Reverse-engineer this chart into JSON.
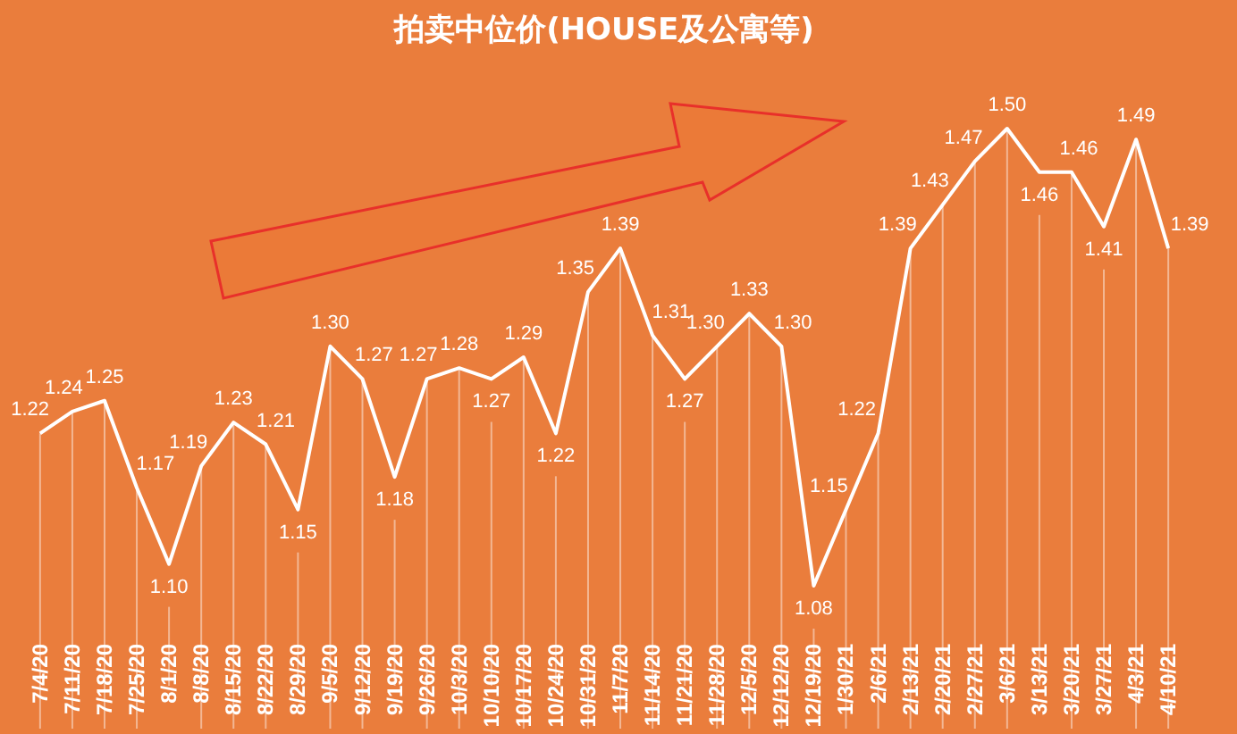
{
  "chart_data": {
    "type": "line",
    "title": "拍卖中位价(HOUSE及公寓等)",
    "categories": [
      "7/4/20",
      "7/11/20",
      "7/18/20",
      "7/25/20",
      "8/1/20",
      "8/8/20",
      "8/15/20",
      "8/22/20",
      "8/29/20",
      "9/5/20",
      "9/12/20",
      "9/19/20",
      "9/26/20",
      "10/3/20",
      "10/10/20",
      "10/17/20",
      "10/24/20",
      "10/31/20",
      "11/7/20",
      "11/14/20",
      "11/21/20",
      "11/28/20",
      "12/5/20",
      "12/12/20",
      "12/19/20",
      "1/30/21",
      "2/6/21",
      "2/13/21",
      "2/20/21",
      "2/27/21",
      "3/6/21",
      "3/13/21",
      "3/20/21",
      "3/27/21",
      "4/3/21",
      "4/10/21"
    ],
    "series": [
      {
        "color": "#ffffff",
        "values": [
          1.22,
          1.24,
          1.25,
          1.17,
          1.1,
          1.19,
          1.23,
          1.21,
          1.15,
          1.3,
          1.27,
          1.18,
          1.27,
          1.28,
          1.27,
          1.29,
          1.22,
          1.35,
          1.39,
          1.31,
          1.27,
          1.3,
          1.33,
          1.3,
          1.08,
          1.15,
          1.22,
          1.39,
          1.43,
          1.47,
          1.5,
          1.46,
          1.46,
          1.41,
          1.49,
          1.39
        ],
        "value_labels": [
          "1.22",
          "1.24",
          "1.25",
          "1.17",
          "1.10",
          "1.19",
          "1.23",
          "1.21",
          "1.15",
          "1.30",
          "1.27",
          "1.18",
          "1.27",
          "1.28",
          "1.27",
          "1.29",
          "1.22",
          "1.35",
          "1.39",
          "1.31",
          "1.27",
          "1.30",
          "1.33",
          "1.30",
          "1.08",
          "1.15",
          "1.22",
          "1.39",
          "1.43",
          "1.47",
          "1.50",
          "1.46",
          "1.46",
          "1.41",
          "1.49",
          "1.39"
        ]
      }
    ],
    "tick_labels": "x",
    "grid": "x",
    "marker": "none"
  }
}
